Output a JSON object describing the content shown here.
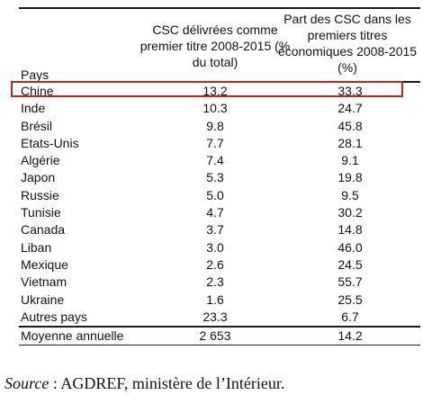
{
  "table": {
    "header": {
      "pays": "Pays",
      "col2": "CSC délivrées comme premier titre 2008-2015 (% du total)",
      "col3": "Part des CSC dans les premiers titres économiques 2008-2015 (%)"
    },
    "rows": [
      {
        "pays": "Chine",
        "share": "13.2",
        "part": "33.3"
      },
      {
        "pays": "Inde",
        "share": "10.3",
        "part": "24.7"
      },
      {
        "pays": "Brésil",
        "share": "9.8",
        "part": "45.8"
      },
      {
        "pays": "Etats-Unis",
        "share": "7.7",
        "part": "28.1"
      },
      {
        "pays": "Algérie",
        "share": "7.4",
        "part": "9.1"
      },
      {
        "pays": "Japon",
        "share": "5.3",
        "part": "19.8"
      },
      {
        "pays": "Russie",
        "share": "5.0",
        "part": "9.5"
      },
      {
        "pays": "Tunisie",
        "share": "4.7",
        "part": "30.2"
      },
      {
        "pays": "Canada",
        "share": "3.7",
        "part": "14.8"
      },
      {
        "pays": "Liban",
        "share": "3.0",
        "part": "46.0"
      },
      {
        "pays": "Mexique",
        "share": "2.6",
        "part": "24.5"
      },
      {
        "pays": "Vietnam",
        "share": "2.3",
        "part": "55.7"
      },
      {
        "pays": "Ukraine",
        "share": "1.6",
        "part": "25.5"
      },
      {
        "pays": "Autres pays",
        "share": "23.3",
        "part": "6.7"
      },
      {
        "pays": "Moyenne annuelle",
        "share": "2 653",
        "part": "14.2"
      }
    ],
    "highlighted_row": "Chine",
    "highlight_color": "#c9211e"
  },
  "source": {
    "label": "Source",
    "text": " : AGDREF, ministère de l’Intérieur."
  }
}
